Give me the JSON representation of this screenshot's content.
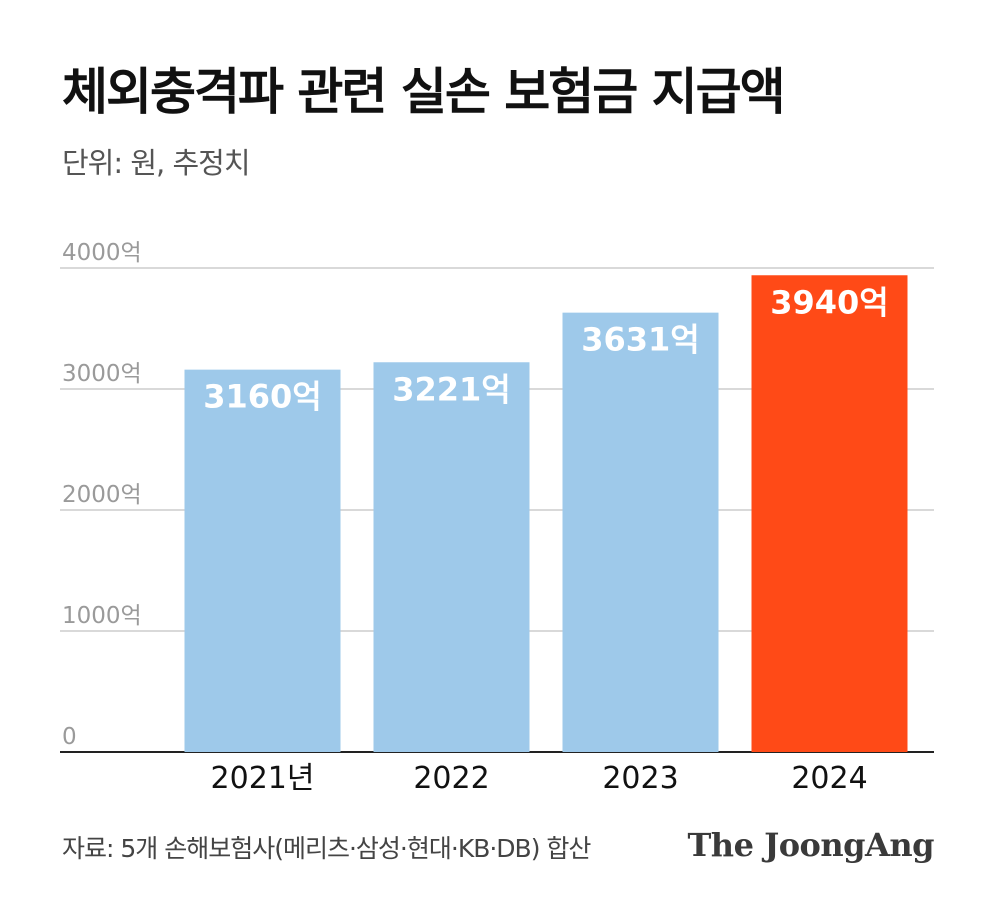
{
  "title": "체외충격파 관련 실손 보험금 지급액",
  "subtitle": "단위: 원, 추정치",
  "source": "자료: 5개 손해보험사(메리츠·삼성·현대·KB·DB) 합산",
  "logo": "The JoongAng",
  "colors": {
    "normal_bar": "#9ec9ea",
    "highlight_bar": "#ff4a17",
    "gridline": "#d9d9d9",
    "axis": "#222222"
  },
  "chart_data": {
    "type": "bar",
    "categories": [
      "2021년",
      "2022",
      "2023",
      "2024"
    ],
    "values": [
      3160,
      3221,
      3631,
      3940
    ],
    "value_labels": [
      "3160억",
      "3221억",
      "3631억",
      "3940억"
    ],
    "highlight_index": 3,
    "ylim": [
      0,
      4000
    ],
    "yticks": [
      0,
      1000,
      2000,
      3000,
      4000
    ],
    "ytick_labels": [
      "0",
      "1000억",
      "2000억",
      "3000억",
      "4000억"
    ],
    "grid": true
  }
}
